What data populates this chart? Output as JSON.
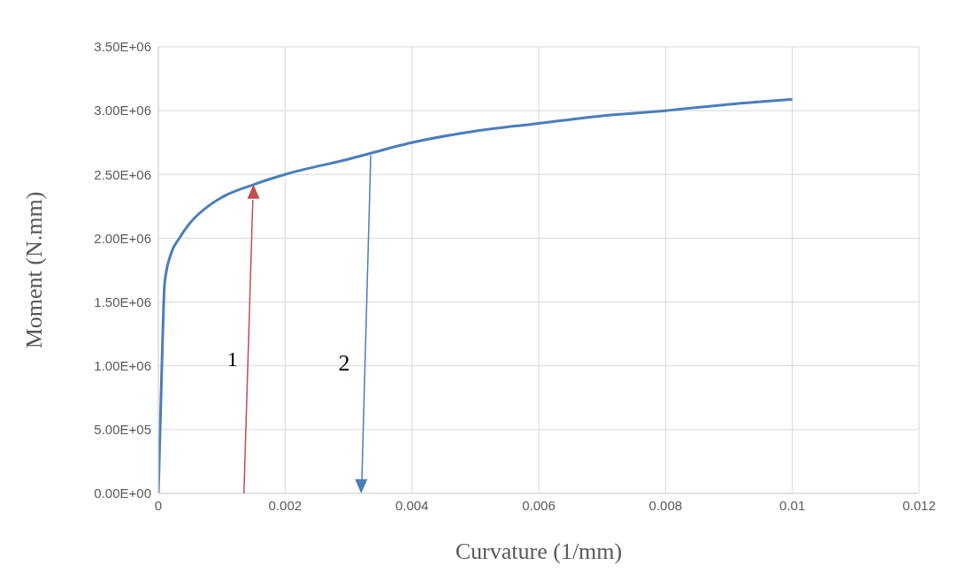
{
  "chart_data": {
    "type": "line",
    "xlabel": "Curvature (1/mm)",
    "ylabel": "Moment  (N.mm)",
    "x": [
      0,
      5e-05,
      0.0001,
      0.0002,
      0.00033,
      0.0005,
      0.00081,
      0.001,
      0.0015,
      0.002,
      0.003,
      0.004,
      0.005,
      0.006,
      0.007,
      0.008,
      0.009,
      0.01
    ],
    "series": [
      {
        "color": "#4a7ebb",
        "values": [
          0,
          900000,
          1650000,
          1880000,
          2000000,
          2120000,
          2260000,
          2320000,
          2420000,
          2500000,
          2620000,
          2750000,
          2840000,
          2900000,
          2960000,
          3000000,
          3050000,
          3090000
        ]
      }
    ],
    "xlim": [
      0,
      0.012
    ],
    "xticks": [
      0,
      0.002,
      0.004,
      0.006,
      0.008,
      0.01,
      0.012
    ],
    "ylim": [
      0,
      3500000
    ],
    "yticks": [
      {
        "value": 0,
        "label": "0.00E+00"
      },
      {
        "value": 500000,
        "label": "5.00E+05"
      },
      {
        "value": 1000000,
        "label": "1.00E+06"
      },
      {
        "value": 1500000,
        "label": "1.50E+06"
      },
      {
        "value": 2000000,
        "label": "2.00E+06"
      },
      {
        "value": 2500000,
        "label": "2.50E+06"
      },
      {
        "value": 3000000,
        "label": "3.00E+06"
      },
      {
        "value": 3500000,
        "label": "3.50E+06"
      }
    ],
    "grid": true,
    "marker": "none",
    "line_style": "solid",
    "annotations": [
      "1",
      "2"
    ]
  }
}
